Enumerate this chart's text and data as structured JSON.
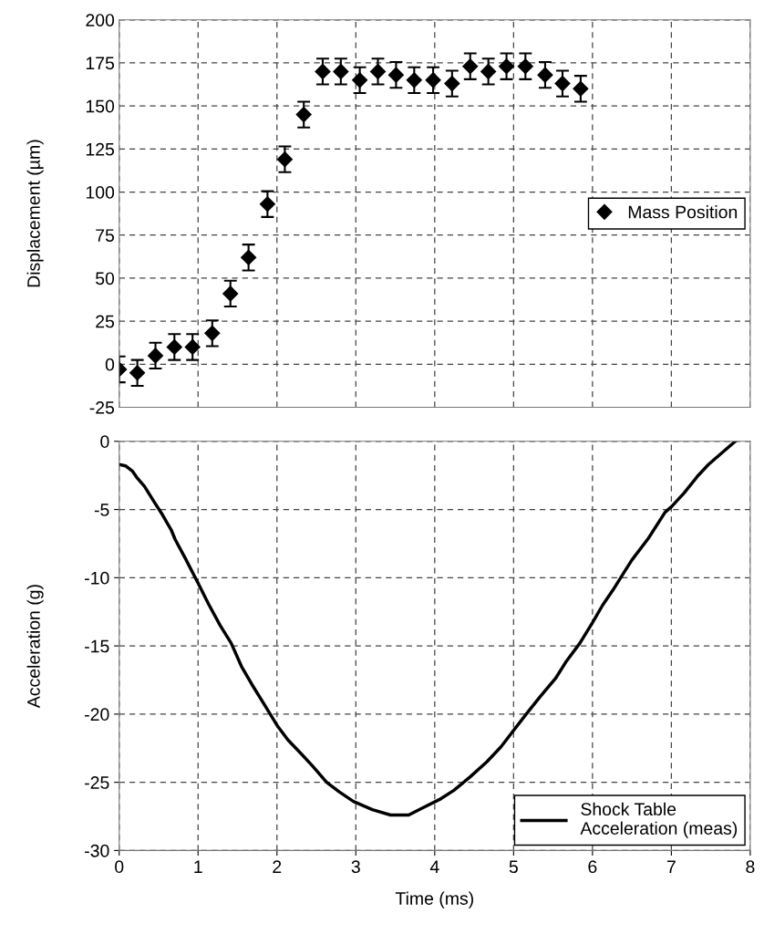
{
  "chart_data": [
    {
      "type": "scatter",
      "ylabel": "Displacement (µm)",
      "xlim": [
        0,
        8
      ],
      "xticks": [
        0,
        1,
        2,
        3,
        4,
        5,
        6,
        7,
        8
      ],
      "ylim": [
        -25,
        200
      ],
      "yticks": [
        -25,
        0,
        25,
        50,
        75,
        100,
        125,
        150,
        175,
        200
      ],
      "tick_labels": "y",
      "grid": true,
      "legend": "right",
      "marker": "diamond",
      "series": [
        {
          "name": "Mass Position",
          "color": "#000000",
          "x": [
            0,
            0.23,
            0.46,
            0.7,
            0.93,
            1.18,
            1.41,
            1.64,
            1.88,
            2.1,
            2.34,
            2.58,
            2.81,
            3.05,
            3.28,
            3.51,
            3.74,
            3.98,
            4.22,
            4.45,
            4.68,
            4.91,
            5.15,
            5.4,
            5.62,
            5.85
          ],
          "values": [
            -3,
            -5,
            5,
            10,
            10,
            18,
            41,
            62,
            93,
            119,
            145,
            170,
            170,
            165,
            170,
            168,
            165,
            165,
            163,
            173,
            170,
            173,
            173,
            168,
            163,
            160
          ],
          "errors": [
            7.5,
            7.5,
            7.5,
            7.5,
            7.5,
            7.5,
            7.5,
            7.5,
            7.5,
            7.5,
            7.5,
            7.5,
            7.5,
            7.5,
            7.5,
            7.5,
            7.5,
            7.5,
            7.5,
            7.5,
            7.5,
            7.5,
            7.5,
            7.5,
            7.5,
            7.5
          ]
        }
      ]
    },
    {
      "type": "line",
      "xlabel": "Time (ms)",
      "ylabel": "Acceleration (g)",
      "xlim": [
        0,
        8
      ],
      "xticks": [
        0,
        1,
        2,
        3,
        4,
        5,
        6,
        7,
        8
      ],
      "ylim": [
        -30,
        0
      ],
      "yticks": [
        -30,
        -25,
        -20,
        -15,
        -10,
        -5,
        0
      ],
      "grid": true,
      "legend": "bottom right",
      "marker": "none",
      "line_style": "solid",
      "series": [
        {
          "name": "Shock Table\nAcceleration (meas)",
          "color": "#000000",
          "x": [
            0,
            0.08,
            0.17,
            0.23,
            0.32,
            0.45,
            0.55,
            0.66,
            0.71,
            0.84,
            1.0,
            1.13,
            1.28,
            1.42,
            1.55,
            1.68,
            1.84,
            2.01,
            2.14,
            2.29,
            2.45,
            2.63,
            2.79,
            2.97,
            3.21,
            3.44,
            3.67,
            3.84,
            4.08,
            4.24,
            4.45,
            4.66,
            4.84,
            5.0,
            5.16,
            5.34,
            5.53,
            5.66,
            5.84,
            6.0,
            6.13,
            6.26,
            6.39,
            6.5,
            6.71,
            6.92,
            7.0,
            7.16,
            7.34,
            7.47,
            7.61,
            7.81
          ],
          "values": [
            -1.7,
            -1.8,
            -2.2,
            -2.7,
            -3.3,
            -4.5,
            -5.4,
            -6.5,
            -7.2,
            -8.6,
            -10.4,
            -11.9,
            -13.5,
            -14.8,
            -16.5,
            -17.8,
            -19.3,
            -20.9,
            -21.9,
            -22.8,
            -23.8,
            -25.0,
            -25.7,
            -26.4,
            -27.0,
            -27.4,
            -27.4,
            -26.9,
            -26.2,
            -25.6,
            -24.6,
            -23.5,
            -22.4,
            -21.2,
            -20.0,
            -18.7,
            -17.4,
            -16.2,
            -14.8,
            -13.3,
            -12.0,
            -10.9,
            -9.7,
            -8.7,
            -7.1,
            -5.2,
            -4.8,
            -3.8,
            -2.5,
            -1.7,
            -1.0,
            0
          ]
        }
      ]
    }
  ]
}
